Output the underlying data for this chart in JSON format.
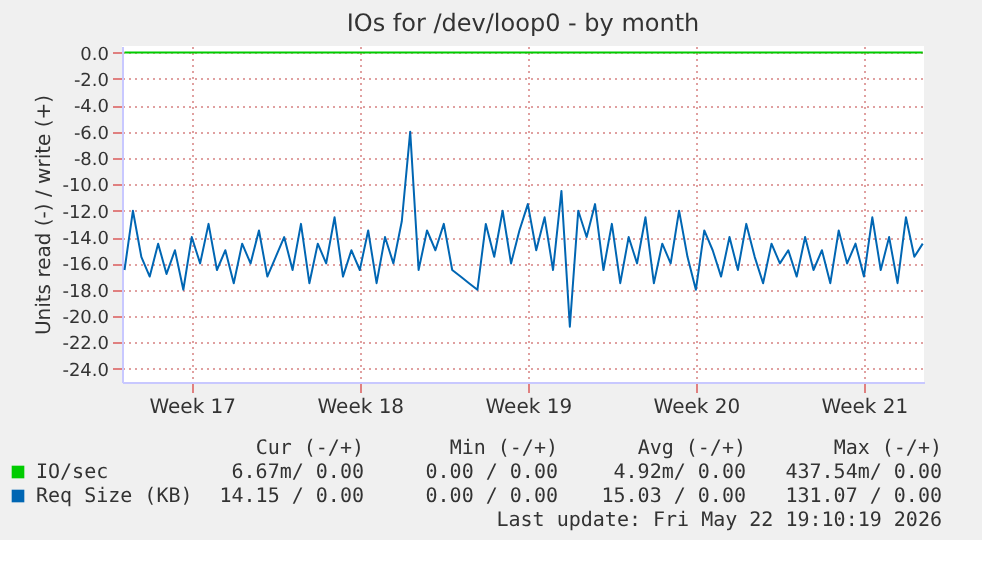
{
  "chart_data": {
    "type": "line",
    "title": "IOs for /dev/loop0 - by month",
    "ylabel": "Units read (-) / write (+)",
    "ylim": [
      -25,
      0.5
    ],
    "categories": [
      null,
      null,
      null,
      null,
      null,
      null,
      null,
      null,
      "Week 17",
      null,
      null,
      null,
      null,
      null,
      null,
      null,
      null,
      null,
      null,
      null,
      null,
      null,
      null,
      null,
      null,
      null,
      null,
      null,
      "Week 18",
      null,
      null,
      null,
      null,
      null,
      null,
      null,
      null,
      null,
      null,
      null,
      null,
      null,
      null,
      null,
      null,
      null,
      null,
      null,
      "Week 19",
      null,
      null,
      null,
      null,
      null,
      null,
      null,
      null,
      null,
      null,
      null,
      null,
      null,
      null,
      null,
      null,
      null,
      null,
      null,
      "Week 20",
      null,
      null,
      null,
      null,
      null,
      null,
      null,
      null,
      null,
      null,
      null,
      null,
      null,
      null,
      null,
      null,
      null,
      null,
      null,
      "Week 21",
      null,
      null,
      null,
      null,
      null,
      null,
      null
    ],
    "yticks": [
      {
        "value": 0,
        "label": "0.0"
      },
      {
        "value": -2,
        "label": "-2.0"
      },
      {
        "value": -4,
        "label": "-4.0"
      },
      {
        "value": -6,
        "label": "-6.0"
      },
      {
        "value": -8,
        "label": "-8.0"
      },
      {
        "value": -10,
        "label": "-10.0"
      },
      {
        "value": -12,
        "label": "-12.0"
      },
      {
        "value": -14,
        "label": "-14.0"
      },
      {
        "value": -16,
        "label": "-16.0"
      },
      {
        "value": -18,
        "label": "-18.0"
      },
      {
        "value": -20,
        "label": "-20.0"
      },
      {
        "value": -22,
        "label": "-22.0"
      },
      {
        "value": -24,
        "label": "-24.0"
      }
    ],
    "grid": true,
    "legend": "bottom",
    "line_style": "solid",
    "marker": "none",
    "series": [
      {
        "name": "IO/sec",
        "color": "#00cc00",
        "values": [
          0,
          0,
          0,
          0,
          0,
          0,
          0,
          0,
          0,
          0,
          0,
          0,
          0,
          0,
          0,
          0,
          0,
          0,
          0,
          0,
          0,
          0,
          0,
          0,
          0,
          0,
          0,
          0,
          0,
          0,
          0,
          0,
          0,
          0,
          0,
          0,
          0,
          0,
          0,
          0,
          0,
          0,
          0,
          0,
          0,
          0,
          0,
          0,
          0,
          0,
          0,
          0,
          0,
          0,
          0,
          0,
          0,
          0,
          0,
          0,
          0,
          0,
          0,
          0,
          0,
          0,
          0,
          0,
          0,
          0,
          0,
          0,
          0,
          0,
          0,
          0,
          0,
          0,
          0,
          0,
          0,
          0,
          0,
          0,
          0,
          0,
          0,
          0,
          0,
          0,
          0,
          0,
          0,
          0,
          0,
          0
        ]
      },
      {
        "name": "Req Size (KB)",
        "color": "#0066b3",
        "values": [
          -16.5,
          -12.0,
          -15.5,
          -17.0,
          -14.5,
          -16.8,
          -15.0,
          -18.0,
          -14.0,
          -16.0,
          -13.0,
          -16.5,
          -15.0,
          -17.5,
          -14.5,
          -16.0,
          -13.5,
          -17.0,
          -15.5,
          -14.0,
          -16.5,
          -13.0,
          -17.5,
          -14.5,
          -16.0,
          -12.5,
          -17.0,
          -15.0,
          -16.5,
          -13.5,
          -17.5,
          -14.0,
          -16.0,
          -12.8,
          -6.0,
          -16.5,
          -13.5,
          -15.0,
          -13.0,
          -16.5,
          -17.0,
          -17.5,
          -18.0,
          -13.0,
          -15.5,
          -12.0,
          -16.0,
          -13.5,
          -11.5,
          -15.0,
          -12.5,
          -16.5,
          -10.5,
          -20.8,
          -12.0,
          -14.0,
          -11.5,
          -16.5,
          -13.0,
          -17.5,
          -14.0,
          -16.0,
          -12.5,
          -17.5,
          -14.5,
          -16.0,
          -12.0,
          -15.5,
          -18.0,
          -13.5,
          -15.0,
          -17.0,
          -14.0,
          -16.5,
          -13.0,
          -15.5,
          -17.5,
          -14.5,
          -16.0,
          -15.0,
          -17.0,
          -14.0,
          -16.5,
          -15.0,
          -17.5,
          -13.5,
          -16.0,
          -14.5,
          -17.0,
          -12.5,
          -16.5,
          -14.0,
          -17.5,
          -12.5,
          -15.5,
          -14.5
        ]
      }
    ],
    "annotations": [
      "Cur (-/+)",
      "Min (-/+)",
      "Avg (-/+)",
      "Max (-/+)",
      "6.67m/ 0.00",
      "0.00 / 0.00",
      "4.92m/ 0.00",
      "437.54m/ 0.00",
      "14.15 / 0.00",
      "0.00 / 0.00",
      "15.03 / 0.00",
      "131.07 / 0.00",
      "Last update: Fri May 22 19:10:19 2026"
    ]
  }
}
